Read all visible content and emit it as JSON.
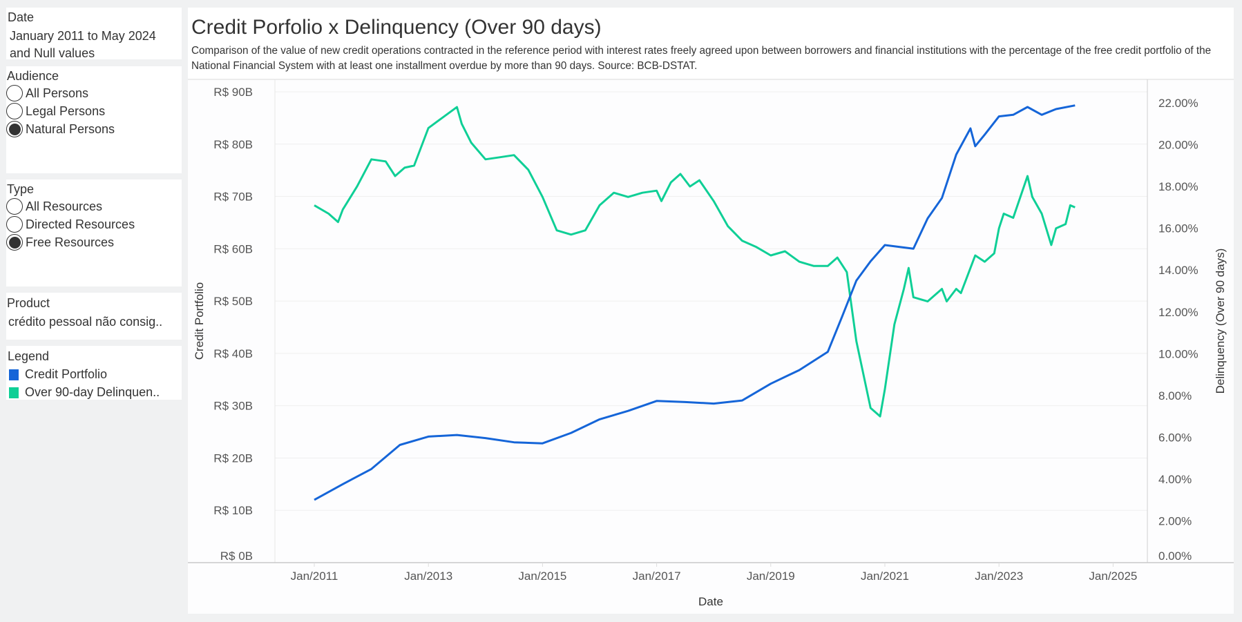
{
  "filters": {
    "date": {
      "title": "Date",
      "value_line1": "January 2011 to May 2024",
      "value_line2": "and Null values"
    },
    "audience": {
      "title": "Audience",
      "options": [
        "All Persons",
        "Legal Persons",
        "Natural Persons"
      ],
      "selected": "Natural Persons"
    },
    "type": {
      "title": "Type",
      "options": [
        "All Resources",
        "Directed Resources",
        "Free Resources"
      ],
      "selected": "Free Resources"
    },
    "product": {
      "title": "Product",
      "value": "crédito pessoal não consig.."
    }
  },
  "legend": {
    "title": "Legend",
    "items": [
      {
        "label": "Credit Portfolio",
        "color": "#1565d8"
      },
      {
        "label": "Over 90-day Delinquen..",
        "color": "#0fcf96"
      }
    ]
  },
  "chart_data": {
    "type": "line",
    "title": "Credit Porfolio x Delinquency (Over 90 days)",
    "subtitle": "Comparison of the value of new credit operations contracted in the reference period with interest rates freely agreed upon between borrowers and financial institutions with the percentage of the free credit portfolio of the National Financial System with at least one installment overdue by more than 90 days.   Source: BCB-DSTAT.",
    "xlabel": "Date",
    "ylabel_left": "Credit Portfolio",
    "ylabel_right": "Delinquency (Over 90 days)",
    "x_ticks": [
      "Jan/2011",
      "Jan/2013",
      "Jan/2015",
      "Jan/2017",
      "Jan/2019",
      "Jan/2021",
      "Jan/2023",
      "Jan/2025"
    ],
    "y_left_ticks": [
      "R$ 0B",
      "R$ 10B",
      "R$ 20B",
      "R$ 30B",
      "R$ 40B",
      "R$ 50B",
      "R$ 60B",
      "R$ 70B",
      "R$ 80B",
      "R$ 90B"
    ],
    "y_right_ticks": [
      "0.00%",
      "2.00%",
      "4.00%",
      "6.00%",
      "8.00%",
      "10.00%",
      "12.00%",
      "14.00%",
      "16.00%",
      "18.00%",
      "20.00%",
      "22.00%"
    ],
    "xlim": [
      "2010-04",
      "2025-05"
    ],
    "ylim_left": [
      0,
      90
    ],
    "ylim_right": [
      0,
      22
    ],
    "grid": "horizontal",
    "series": [
      {
        "name": "Credit Portfolio",
        "axis": "left",
        "unit": "R$ B",
        "color": "#1565d8",
        "points": [
          [
            "2011-01",
            12.0
          ],
          [
            "2011-07",
            15.0
          ],
          [
            "2012-01",
            17.9
          ],
          [
            "2012-07",
            22.5
          ],
          [
            "2013-01",
            24.1
          ],
          [
            "2013-07",
            24.4
          ],
          [
            "2014-01",
            23.8
          ],
          [
            "2014-07",
            23.0
          ],
          [
            "2015-01",
            22.8
          ],
          [
            "2015-07",
            24.8
          ],
          [
            "2016-01",
            27.4
          ],
          [
            "2016-07",
            29.0
          ],
          [
            "2017-01",
            30.9
          ],
          [
            "2017-07",
            30.7
          ],
          [
            "2018-01",
            30.4
          ],
          [
            "2018-07",
            31.0
          ],
          [
            "2019-01",
            34.2
          ],
          [
            "2019-07",
            36.8
          ],
          [
            "2020-01",
            40.3
          ],
          [
            "2020-04",
            47.0
          ],
          [
            "2020-07",
            53.9
          ],
          [
            "2020-10",
            57.6
          ],
          [
            "2021-01",
            60.7
          ],
          [
            "2021-07",
            60.0
          ],
          [
            "2021-10",
            65.8
          ],
          [
            "2022-01",
            69.7
          ],
          [
            "2022-04",
            78.0
          ],
          [
            "2022-07",
            83.0
          ],
          [
            "2022-08",
            79.6
          ],
          [
            "2022-10",
            81.8
          ],
          [
            "2023-01",
            85.3
          ],
          [
            "2023-04",
            85.6
          ],
          [
            "2023-07",
            87.1
          ],
          [
            "2023-10",
            85.6
          ],
          [
            "2024-01",
            86.7
          ],
          [
            "2024-05",
            87.4
          ]
        ]
      },
      {
        "name": "Over 90-day Delinquency",
        "axis": "right",
        "unit": "%",
        "color": "#0fcf96",
        "points": [
          [
            "2011-01",
            17.1
          ],
          [
            "2011-04",
            16.7
          ],
          [
            "2011-06",
            16.3
          ],
          [
            "2011-07",
            16.9
          ],
          [
            "2011-10",
            18.0
          ],
          [
            "2012-01",
            19.3
          ],
          [
            "2012-04",
            19.2
          ],
          [
            "2012-06",
            18.5
          ],
          [
            "2012-08",
            18.9
          ],
          [
            "2012-10",
            19.0
          ],
          [
            "2013-01",
            20.8
          ],
          [
            "2013-04",
            21.3
          ],
          [
            "2013-07",
            21.8
          ],
          [
            "2013-08",
            21.0
          ],
          [
            "2013-10",
            20.1
          ],
          [
            "2014-01",
            19.3
          ],
          [
            "2014-04",
            19.4
          ],
          [
            "2014-07",
            19.5
          ],
          [
            "2014-10",
            18.8
          ],
          [
            "2015-01",
            17.5
          ],
          [
            "2015-04",
            15.9
          ],
          [
            "2015-07",
            15.7
          ],
          [
            "2015-10",
            15.9
          ],
          [
            "2016-01",
            17.1
          ],
          [
            "2016-04",
            17.7
          ],
          [
            "2016-07",
            17.5
          ],
          [
            "2016-10",
            17.7
          ],
          [
            "2017-01",
            17.8
          ],
          [
            "2017-02",
            17.3
          ],
          [
            "2017-04",
            18.2
          ],
          [
            "2017-06",
            18.6
          ],
          [
            "2017-08",
            18.0
          ],
          [
            "2017-10",
            18.3
          ],
          [
            "2018-01",
            17.3
          ],
          [
            "2018-04",
            16.1
          ],
          [
            "2018-07",
            15.4
          ],
          [
            "2018-10",
            15.1
          ],
          [
            "2019-01",
            14.7
          ],
          [
            "2019-04",
            14.9
          ],
          [
            "2019-07",
            14.4
          ],
          [
            "2019-10",
            14.2
          ],
          [
            "2020-01",
            14.2
          ],
          [
            "2020-03",
            14.6
          ],
          [
            "2020-05",
            13.9
          ],
          [
            "2020-07",
            10.6
          ],
          [
            "2020-10",
            7.4
          ],
          [
            "2020-12",
            7.0
          ],
          [
            "2021-01",
            8.3
          ],
          [
            "2021-03",
            11.4
          ],
          [
            "2021-05",
            13.1
          ],
          [
            "2021-06",
            14.1
          ],
          [
            "2021-07",
            12.7
          ],
          [
            "2021-10",
            12.5
          ],
          [
            "2022-01",
            13.1
          ],
          [
            "2022-02",
            12.5
          ],
          [
            "2022-04",
            13.1
          ],
          [
            "2022-05",
            12.9
          ],
          [
            "2022-08",
            14.7
          ],
          [
            "2022-10",
            14.4
          ],
          [
            "2022-12",
            14.8
          ],
          [
            "2023-01",
            16.0
          ],
          [
            "2023-02",
            16.7
          ],
          [
            "2023-04",
            16.5
          ],
          [
            "2023-07",
            18.5
          ],
          [
            "2023-08",
            17.5
          ],
          [
            "2023-10",
            16.7
          ],
          [
            "2023-12",
            15.2
          ],
          [
            "2024-01",
            16.0
          ],
          [
            "2024-03",
            16.2
          ],
          [
            "2024-04",
            17.1
          ],
          [
            "2024-05",
            17.0
          ]
        ]
      }
    ]
  }
}
